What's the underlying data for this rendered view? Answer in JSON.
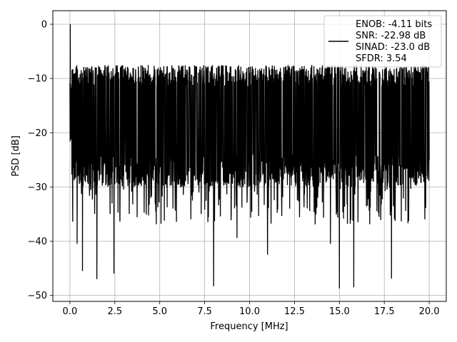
{
  "chart_data": {
    "type": "line",
    "title": "",
    "xlabel": "Frequency [MHz]",
    "ylabel": "PSD [dB]",
    "xlim": [
      -0.95,
      20.95
    ],
    "ylim": [
      -51.1,
      2.5
    ],
    "xticks": [
      0.0,
      2.5,
      5.0,
      7.5,
      10.0,
      12.5,
      15.0,
      17.5,
      20.0
    ],
    "xtick_labels": [
      "0.0",
      "2.5",
      "5.0",
      "7.5",
      "10.0",
      "12.5",
      "15.0",
      "17.5",
      "20.0"
    ],
    "yticks": [
      0,
      -10,
      -20,
      -30,
      -40,
      -50
    ],
    "ytick_labels": [
      "0",
      "−10",
      "−20",
      "−30",
      "−40",
      "−50"
    ],
    "grid": true,
    "legend_position": "top-right",
    "legend_lines": [
      "ENOB: -4.11 bits",
      "SNR: -22.98 dB",
      "SINAD: -23.0 dB",
      "SFDR: 3.54"
    ],
    "series": [
      {
        "color": "#000000",
        "x_range": [
          0.0,
          20.0
        ],
        "points": 2048,
        "approx_band_top_db": -10,
        "approx_band_bottom_db": -27,
        "peak": {
          "x": 0.02,
          "y": 0.0
        },
        "notable_dips": [
          {
            "x": 0.4,
            "y": -40.5
          },
          {
            "x": 0.7,
            "y": -45.5
          },
          {
            "x": 1.5,
            "y": -47.0
          },
          {
            "x": 2.45,
            "y": -46.0
          },
          {
            "x": 8.0,
            "y": -48.3
          },
          {
            "x": 9.3,
            "y": -39.4
          },
          {
            "x": 11.0,
            "y": -42.5
          },
          {
            "x": 14.5,
            "y": -40.5
          },
          {
            "x": 15.0,
            "y": -48.7
          },
          {
            "x": 15.8,
            "y": -48.5
          },
          {
            "x": 17.9,
            "y": -46.9
          }
        ]
      }
    ]
  }
}
